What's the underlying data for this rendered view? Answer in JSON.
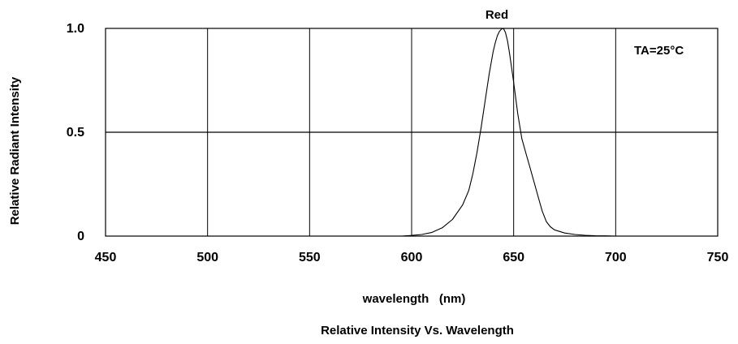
{
  "chart_data": {
    "type": "line",
    "title": "Red",
    "subtitle": "Relative Intensity Vs. Wavelength",
    "xlabel": "wavelength   (nm)",
    "ylabel": "Relative Radiant Intensity",
    "annotation": "TA=25°C",
    "xlim": [
      450,
      750
    ],
    "ylim": [
      0,
      1.0
    ],
    "x_ticks": [
      450,
      500,
      550,
      600,
      650,
      700,
      750
    ],
    "x_tick_labels": [
      "450",
      "500",
      "550",
      "600",
      "650",
      "700",
      "750"
    ],
    "y_ticks": [
      0,
      0.5,
      1.0
    ],
    "y_tick_labels": [
      "0",
      "0.5",
      "1.0"
    ],
    "grid": true,
    "line_color": "#000000",
    "series": [
      {
        "x": [
          595,
          600,
          605,
          610,
          615,
          620,
          625,
          628,
          630,
          632,
          634,
          636,
          638,
          640,
          641,
          642,
          643,
          644,
          645,
          646,
          647,
          648,
          650,
          652,
          654,
          656,
          658,
          660,
          662,
          664,
          666,
          668,
          670,
          675,
          680,
          685,
          690,
          695,
          700
        ],
        "y": [
          0.0,
          0.003,
          0.008,
          0.018,
          0.04,
          0.08,
          0.15,
          0.22,
          0.3,
          0.4,
          0.52,
          0.65,
          0.78,
          0.89,
          0.93,
          0.965,
          0.985,
          0.997,
          1.0,
          0.98,
          0.94,
          0.88,
          0.74,
          0.59,
          0.47,
          0.4,
          0.33,
          0.26,
          0.19,
          0.12,
          0.07,
          0.045,
          0.03,
          0.015,
          0.008,
          0.004,
          0.002,
          0.001,
          0.0
        ]
      }
    ]
  }
}
